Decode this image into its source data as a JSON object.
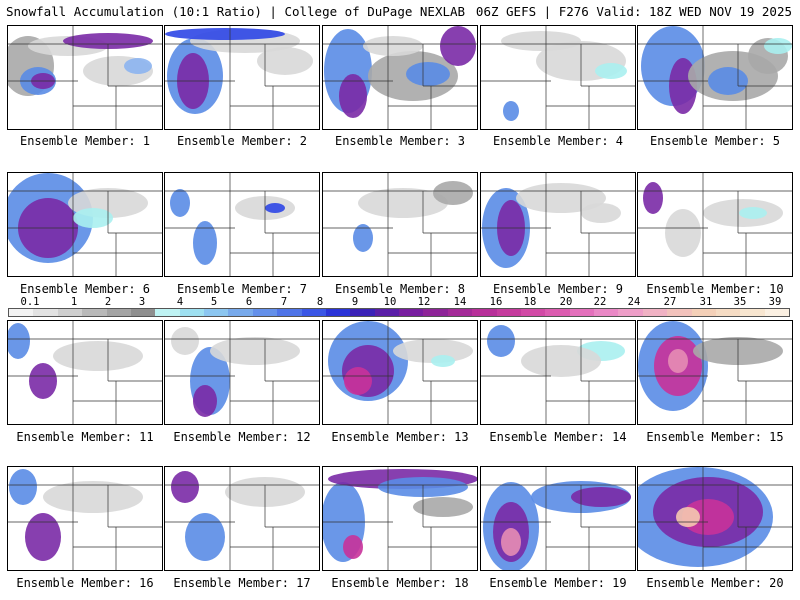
{
  "header": {
    "left": "Snowfall Accumulation (10:1 Ratio) | College of DuPage NEXLAB",
    "right": "06Z GEFS | F276 Valid: 18Z WED NOV 19 2025"
  },
  "colors": {
    "gray_light": "#d8d8d8",
    "gray_mid": "#a9a9a9",
    "gray_dark": "#808080",
    "cyan": "#aaf0f0",
    "blue_light": "#8cb4f0",
    "blue": "#5a8ce6",
    "blue_deep": "#2d46e6",
    "purple": "#7a2aa6",
    "magenta": "#c8329a",
    "pink": "#e68cb4",
    "peach": "#f5c8b0"
  },
  "legend": {
    "labels": [
      "0.1",
      "1",
      "2",
      "3",
      "4",
      "5",
      "6",
      "7",
      "8",
      "9",
      "10",
      "12",
      "14",
      "16",
      "18",
      "20",
      "22",
      "24",
      "27",
      "31",
      "35",
      "39"
    ],
    "swatches": [
      "#f2f2f2",
      "#e2e2e2",
      "#cfcfcf",
      "#b9b9b9",
      "#a4a4a4",
      "#8f8f8f",
      "#bff3f3",
      "#9fe0f0",
      "#8cc6f0",
      "#78aaec",
      "#6490ea",
      "#4f74e8",
      "#3a56e6",
      "#2a34d8",
      "#3a22b8",
      "#5a1ea8",
      "#781ea0",
      "#8e2498",
      "#a42a98",
      "#b8309a",
      "#c63c9e",
      "#d24aa6",
      "#dc5cb0",
      "#e470bc",
      "#ea88c6",
      "#ee9ec8",
      "#f0b2c4",
      "#f2c2bc",
      "#f4d0b8",
      "#f6dcc4",
      "#f8e6d0",
      "#fbf0e2"
    ]
  },
  "members": [
    {
      "label": "Ensemble Member: 1"
    },
    {
      "label": "Ensemble Member: 2"
    },
    {
      "label": "Ensemble Member: 3"
    },
    {
      "label": "Ensemble Member: 4"
    },
    {
      "label": "Ensemble Member: 5"
    },
    {
      "label": "Ensemble Member: 6"
    },
    {
      "label": "Ensemble Member: 7"
    },
    {
      "label": "Ensemble Member: 8"
    },
    {
      "label": "Ensemble Member: 9"
    },
    {
      "label": "Ensemble Member: 10"
    },
    {
      "label": "Ensemble Member: 11"
    },
    {
      "label": "Ensemble Member: 12"
    },
    {
      "label": "Ensemble Member: 13"
    },
    {
      "label": "Ensemble Member: 14"
    },
    {
      "label": "Ensemble Member: 15"
    },
    {
      "label": "Ensemble Member: 16"
    },
    {
      "label": "Ensemble Member: 17"
    },
    {
      "label": "Ensemble Member: 18"
    },
    {
      "label": "Ensemble Member: 19"
    },
    {
      "label": "Ensemble Member: 20"
    }
  ]
}
